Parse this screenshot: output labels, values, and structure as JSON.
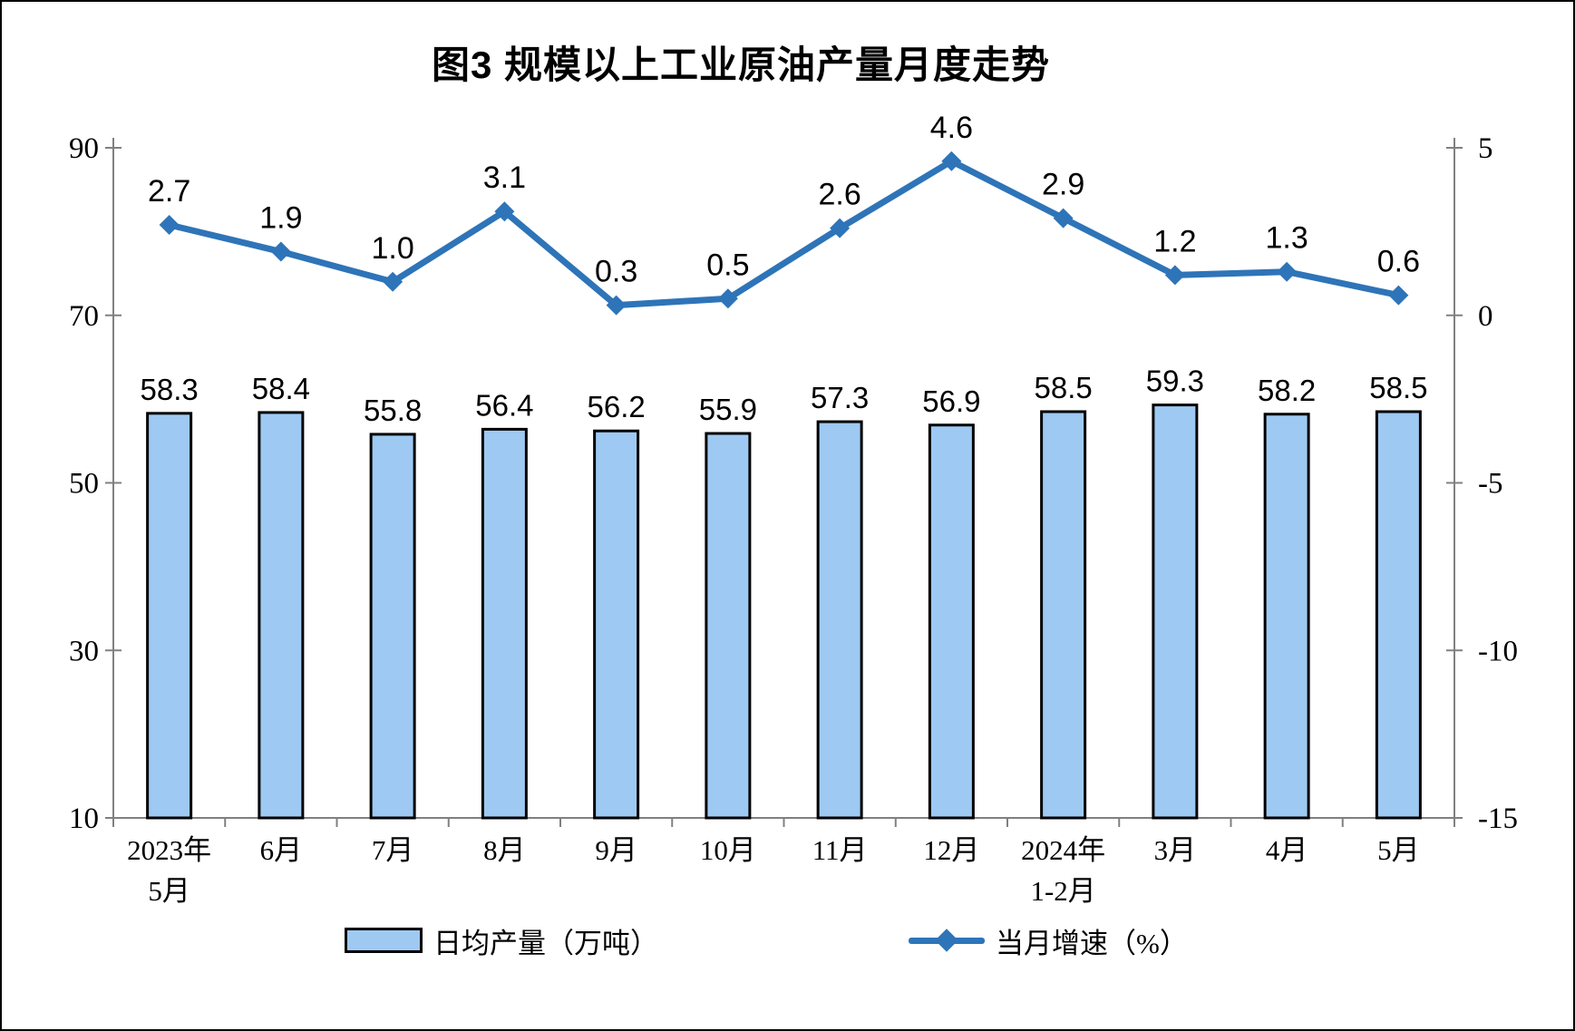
{
  "page": {
    "background": "#ffffff",
    "frame_border_color": "#000000"
  },
  "chart_data": {
    "type": "combo-bar-line",
    "title": "图3 规模以上工业原油产量月度走势",
    "categories": [
      [
        "2023年",
        "5月"
      ],
      [
        "6月"
      ],
      [
        "7月"
      ],
      [
        "8月"
      ],
      [
        "9月"
      ],
      [
        "10月"
      ],
      [
        "11月"
      ],
      [
        "12月"
      ],
      [
        "2024年",
        "1-2月"
      ],
      [
        "3月"
      ],
      [
        "4月"
      ],
      [
        "5月"
      ]
    ],
    "series": [
      {
        "name": "日均产量（万吨）",
        "type": "bar",
        "axis": "left",
        "values": [
          58.3,
          58.4,
          55.8,
          56.4,
          56.2,
          55.9,
          57.3,
          56.9,
          58.5,
          59.3,
          58.2,
          58.5
        ],
        "fill": "#9EC9F2",
        "stroke": "#000000"
      },
      {
        "name": "当月增速（%）",
        "type": "line",
        "axis": "right",
        "values": [
          2.7,
          1.9,
          1.0,
          3.1,
          0.3,
          0.5,
          2.6,
          4.6,
          2.9,
          1.2,
          1.3,
          0.6
        ],
        "color": "#2E74B8",
        "marker": "diamond"
      }
    ],
    "left_axis": {
      "min": 10,
      "max": 90,
      "ticks": [
        90,
        70,
        50,
        30,
        10
      ]
    },
    "right_axis": {
      "min": -15,
      "max": 5,
      "ticks": [
        5,
        0,
        -5,
        -10,
        -15
      ]
    },
    "grid": false,
    "legend_position": "bottom",
    "axis_color": "#808080",
    "label_color": "#000000"
  }
}
